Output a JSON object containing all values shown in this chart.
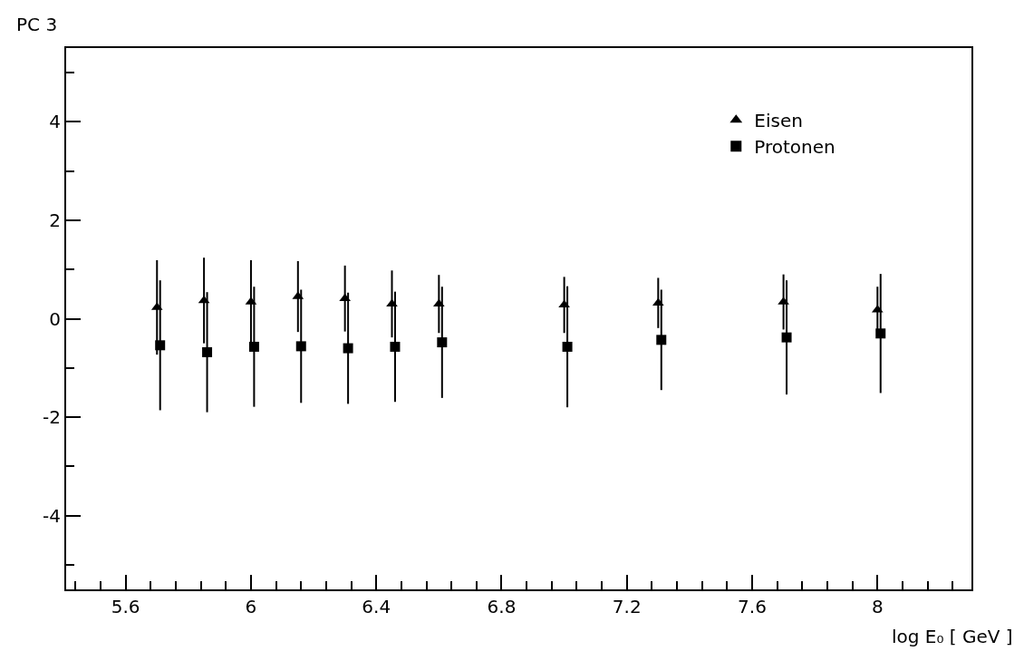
{
  "chart_data": {
    "type": "scatter",
    "ylabel": "PC 3",
    "xlabel": "log E₀ [ GeV ]",
    "xlim": [
      5.41,
      8.3
    ],
    "xticks": [
      {
        "value": 5.44,
        "label": null
      },
      {
        "value": 5.52,
        "label": null
      },
      5.6,
      {
        "value": 5.68,
        "label": null
      },
      {
        "value": 5.76,
        "label": null
      },
      {
        "value": 5.84,
        "label": null
      },
      {
        "value": 5.92,
        "label": null
      },
      6,
      {
        "value": 6.08,
        "label": null
      },
      {
        "value": 6.16,
        "label": null
      },
      {
        "value": 6.24,
        "label": null
      },
      {
        "value": 6.32,
        "label": null
      },
      6.4,
      {
        "value": 6.48,
        "label": null
      },
      {
        "value": 6.56,
        "label": null
      },
      {
        "value": 6.64,
        "label": null
      },
      {
        "value": 6.72,
        "label": null
      },
      6.8,
      {
        "value": 6.88,
        "label": null
      },
      {
        "value": 6.96,
        "label": null
      },
      {
        "value": 7.04,
        "label": null
      },
      {
        "value": 7.12,
        "label": null
      },
      7.2,
      {
        "value": 7.28,
        "label": null
      },
      {
        "value": 7.36,
        "label": null
      },
      {
        "value": 7.44,
        "label": null
      },
      {
        "value": 7.52,
        "label": null
      },
      7.6,
      {
        "value": 7.68,
        "label": null
      },
      {
        "value": 7.76,
        "label": null
      },
      {
        "value": 7.84,
        "label": null
      },
      {
        "value": 7.92,
        "label": null
      },
      8,
      {
        "value": 8.08,
        "label": null
      },
      {
        "value": 8.16,
        "label": null
      },
      {
        "value": 8.24,
        "label": null
      }
    ],
    "ylim": [
      -5.5,
      5.5
    ],
    "yticks": [
      {
        "value": -5,
        "label": null
      },
      -4,
      {
        "value": -3,
        "label": null
      },
      -2,
      {
        "value": -1,
        "label": null
      },
      0,
      {
        "value": 1,
        "label": null
      },
      2,
      {
        "value": 3,
        "label": null
      },
      4,
      {
        "value": 5,
        "label": null
      }
    ],
    "grid": false,
    "legend": "top right",
    "series": [
      {
        "name": "Eisen",
        "color": "#000000",
        "marker": "triangle",
        "x": [
          5.7,
          5.85,
          6.0,
          6.15,
          6.3,
          6.45,
          6.6,
          7.0,
          7.3,
          7.7,
          8.0
        ],
        "values": [
          0.23,
          0.37,
          0.34,
          0.45,
          0.41,
          0.3,
          0.3,
          0.28,
          0.32,
          0.34,
          0.18
        ],
        "errors": [
          0.96,
          0.87,
          0.85,
          0.72,
          0.67,
          0.68,
          0.59,
          0.57,
          0.51,
          0.56,
          0.47
        ]
      },
      {
        "name": "Protonen",
        "color": "#000000",
        "marker": "square",
        "x": [
          5.71,
          5.86,
          6.01,
          6.16,
          6.31,
          6.46,
          6.61,
          7.01,
          7.31,
          7.71,
          8.01
        ],
        "values": [
          -0.54,
          -0.68,
          -0.57,
          -0.56,
          -0.6,
          -0.57,
          -0.48,
          -0.57,
          -0.43,
          -0.38,
          -0.3
        ],
        "errors": [
          1.32,
          1.22,
          1.22,
          1.15,
          1.13,
          1.12,
          1.13,
          1.23,
          1.02,
          1.16,
          1.21
        ]
      }
    ]
  }
}
